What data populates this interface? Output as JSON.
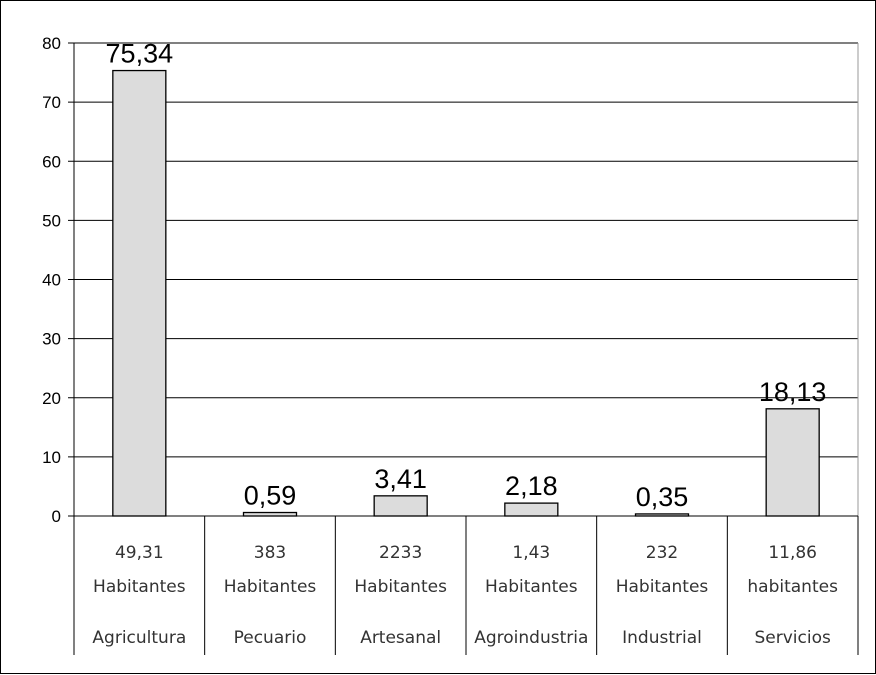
{
  "chart_data": {
    "type": "bar",
    "title": "",
    "xlabel": "",
    "ylabel": "",
    "ylim": [
      0,
      80
    ],
    "yticks": [
      0,
      10,
      20,
      30,
      40,
      50,
      60,
      70,
      80
    ],
    "grid": true,
    "legend": "none",
    "bar_color": "#dcdcdc",
    "categories": [
      {
        "line1": "49,31",
        "line2": "Habitantes",
        "name": "Agricultura"
      },
      {
        "line1": "383",
        "line2": "Habitantes",
        "name": "Pecuario"
      },
      {
        "line1": "2233",
        "line2": "Habitantes",
        "name": "Artesanal"
      },
      {
        "line1": "1,43",
        "line2": "Habitantes",
        "name": "Agroindustria"
      },
      {
        "line1": "232",
        "line2": "Habitantes",
        "name": "Industrial"
      },
      {
        "line1": "11,86",
        "line2": "habitantes",
        "name": "Servicios"
      }
    ],
    "values": [
      75.34,
      0.59,
      3.41,
      2.18,
      0.35,
      18.13
    ],
    "value_labels": [
      "75,34",
      "0,59",
      "3,41",
      "2,18",
      "0,35",
      "18,13"
    ]
  }
}
